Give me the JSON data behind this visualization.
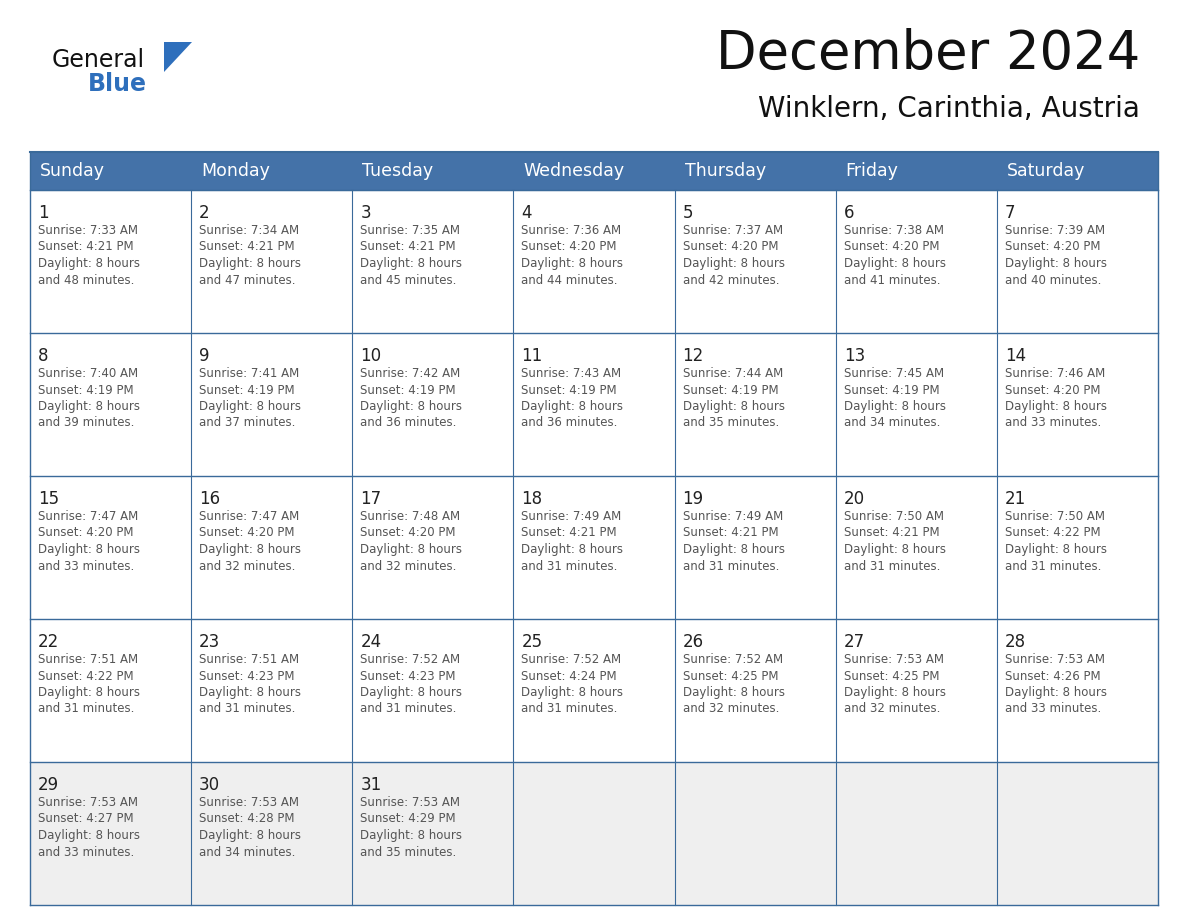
{
  "title": "December 2024",
  "subtitle": "Winklern, Carinthia, Austria",
  "header_bg": "#4472a8",
  "header_text": "#ffffff",
  "day_names": [
    "Sunday",
    "Monday",
    "Tuesday",
    "Wednesday",
    "Thursday",
    "Friday",
    "Saturday"
  ],
  "bg_color": "#ffffff",
  "row_bg": [
    "#ffffff",
    "#ffffff",
    "#ffffff",
    "#ffffff",
    "#efefef"
  ],
  "grid_color": "#3a6a9a",
  "title_color": "#111111",
  "subtitle_color": "#111111",
  "day_num_color": "#222222",
  "cell_text_color": "#555555",
  "logo_general_color": "#111111",
  "logo_blue_color": "#2e6fbc",
  "weeks": [
    [
      {
        "day": 1,
        "sunrise": "7:33 AM",
        "sunset": "4:21 PM",
        "daylight": "8 hours and 48 minutes."
      },
      {
        "day": 2,
        "sunrise": "7:34 AM",
        "sunset": "4:21 PM",
        "daylight": "8 hours and 47 minutes."
      },
      {
        "day": 3,
        "sunrise": "7:35 AM",
        "sunset": "4:21 PM",
        "daylight": "8 hours and 45 minutes."
      },
      {
        "day": 4,
        "sunrise": "7:36 AM",
        "sunset": "4:20 PM",
        "daylight": "8 hours and 44 minutes."
      },
      {
        "day": 5,
        "sunrise": "7:37 AM",
        "sunset": "4:20 PM",
        "daylight": "8 hours and 42 minutes."
      },
      {
        "day": 6,
        "sunrise": "7:38 AM",
        "sunset": "4:20 PM",
        "daylight": "8 hours and 41 minutes."
      },
      {
        "day": 7,
        "sunrise": "7:39 AM",
        "sunset": "4:20 PM",
        "daylight": "8 hours and 40 minutes."
      }
    ],
    [
      {
        "day": 8,
        "sunrise": "7:40 AM",
        "sunset": "4:19 PM",
        "daylight": "8 hours and 39 minutes."
      },
      {
        "day": 9,
        "sunrise": "7:41 AM",
        "sunset": "4:19 PM",
        "daylight": "8 hours and 37 minutes."
      },
      {
        "day": 10,
        "sunrise": "7:42 AM",
        "sunset": "4:19 PM",
        "daylight": "8 hours and 36 minutes."
      },
      {
        "day": 11,
        "sunrise": "7:43 AM",
        "sunset": "4:19 PM",
        "daylight": "8 hours and 36 minutes."
      },
      {
        "day": 12,
        "sunrise": "7:44 AM",
        "sunset": "4:19 PM",
        "daylight": "8 hours and 35 minutes."
      },
      {
        "day": 13,
        "sunrise": "7:45 AM",
        "sunset": "4:19 PM",
        "daylight": "8 hours and 34 minutes."
      },
      {
        "day": 14,
        "sunrise": "7:46 AM",
        "sunset": "4:20 PM",
        "daylight": "8 hours and 33 minutes."
      }
    ],
    [
      {
        "day": 15,
        "sunrise": "7:47 AM",
        "sunset": "4:20 PM",
        "daylight": "8 hours and 33 minutes."
      },
      {
        "day": 16,
        "sunrise": "7:47 AM",
        "sunset": "4:20 PM",
        "daylight": "8 hours and 32 minutes."
      },
      {
        "day": 17,
        "sunrise": "7:48 AM",
        "sunset": "4:20 PM",
        "daylight": "8 hours and 32 minutes."
      },
      {
        "day": 18,
        "sunrise": "7:49 AM",
        "sunset": "4:21 PM",
        "daylight": "8 hours and 31 minutes."
      },
      {
        "day": 19,
        "sunrise": "7:49 AM",
        "sunset": "4:21 PM",
        "daylight": "8 hours and 31 minutes."
      },
      {
        "day": 20,
        "sunrise": "7:50 AM",
        "sunset": "4:21 PM",
        "daylight": "8 hours and 31 minutes."
      },
      {
        "day": 21,
        "sunrise": "7:50 AM",
        "sunset": "4:22 PM",
        "daylight": "8 hours and 31 minutes."
      }
    ],
    [
      {
        "day": 22,
        "sunrise": "7:51 AM",
        "sunset": "4:22 PM",
        "daylight": "8 hours and 31 minutes."
      },
      {
        "day": 23,
        "sunrise": "7:51 AM",
        "sunset": "4:23 PM",
        "daylight": "8 hours and 31 minutes."
      },
      {
        "day": 24,
        "sunrise": "7:52 AM",
        "sunset": "4:23 PM",
        "daylight": "8 hours and 31 minutes."
      },
      {
        "day": 25,
        "sunrise": "7:52 AM",
        "sunset": "4:24 PM",
        "daylight": "8 hours and 31 minutes."
      },
      {
        "day": 26,
        "sunrise": "7:52 AM",
        "sunset": "4:25 PM",
        "daylight": "8 hours and 32 minutes."
      },
      {
        "day": 27,
        "sunrise": "7:53 AM",
        "sunset": "4:25 PM",
        "daylight": "8 hours and 32 minutes."
      },
      {
        "day": 28,
        "sunrise": "7:53 AM",
        "sunset": "4:26 PM",
        "daylight": "8 hours and 33 minutes."
      }
    ],
    [
      {
        "day": 29,
        "sunrise": "7:53 AM",
        "sunset": "4:27 PM",
        "daylight": "8 hours and 33 minutes."
      },
      {
        "day": 30,
        "sunrise": "7:53 AM",
        "sunset": "4:28 PM",
        "daylight": "8 hours and 34 minutes."
      },
      {
        "day": 31,
        "sunrise": "7:53 AM",
        "sunset": "4:29 PM",
        "daylight": "8 hours and 35 minutes."
      },
      null,
      null,
      null,
      null
    ]
  ]
}
